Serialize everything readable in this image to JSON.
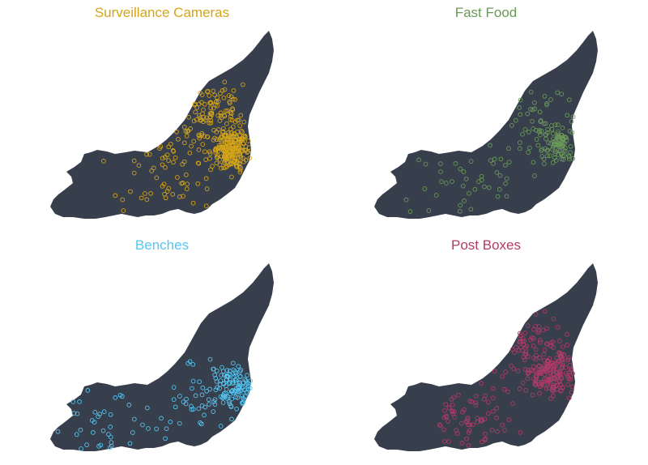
{
  "land_color": "#373e4c",
  "panels": [
    {
      "title": "Surveillance Cameras",
      "color": "#d4a418",
      "seed": 11,
      "point_count": 380,
      "focus": "downtown"
    },
    {
      "title": "Fast Food",
      "color": "#6a9a58",
      "seed": 23,
      "point_count": 180,
      "focus": "east"
    },
    {
      "title": "Benches",
      "color": "#56c6f2",
      "seed": 37,
      "point_count": 190,
      "focus": "south"
    },
    {
      "title": "Post Boxes",
      "color": "#b23a68",
      "seed": 51,
      "point_count": 300,
      "focus": "central"
    }
  ]
}
